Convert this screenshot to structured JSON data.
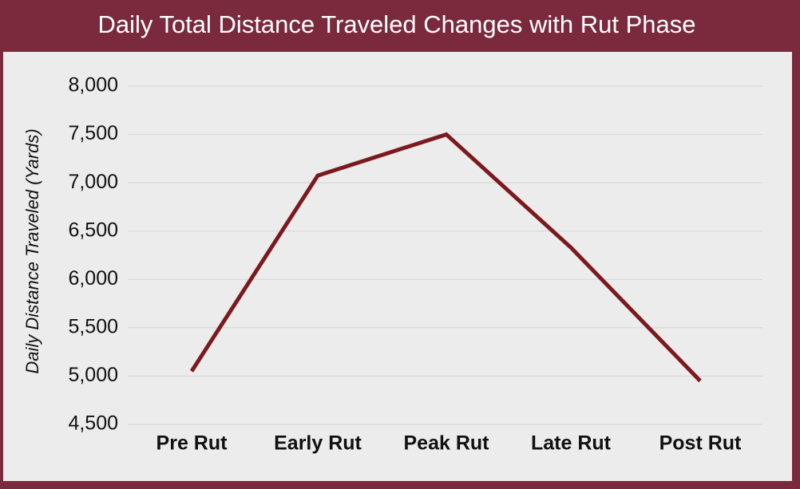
{
  "chart_data": {
    "type": "line",
    "title": "Daily Total Distance Traveled Changes with Rut Phase",
    "y_label": "Daily Distance Traveled (Yards)",
    "categories": [
      "Pre Rut",
      "Early Rut",
      "Peak Rut",
      "Late Rut",
      "Post Rut"
    ],
    "values": [
      5050,
      7075,
      7500,
      6330,
      4950
    ],
    "color": "#7b1a1e",
    "ylim": [
      4500,
      8000
    ],
    "yticks": [
      {
        "value": 4500,
        "label": "4,500"
      },
      {
        "value": 5000,
        "label": "5,000"
      },
      {
        "value": 5500,
        "label": "5,500"
      },
      {
        "value": 6000,
        "label": "6,000"
      },
      {
        "value": 6500,
        "label": "6,500"
      },
      {
        "value": 7000,
        "label": "7,000"
      },
      {
        "value": 7500,
        "label": "7,500"
      },
      {
        "value": 8000,
        "label": "8,000"
      }
    ],
    "grid": true
  }
}
